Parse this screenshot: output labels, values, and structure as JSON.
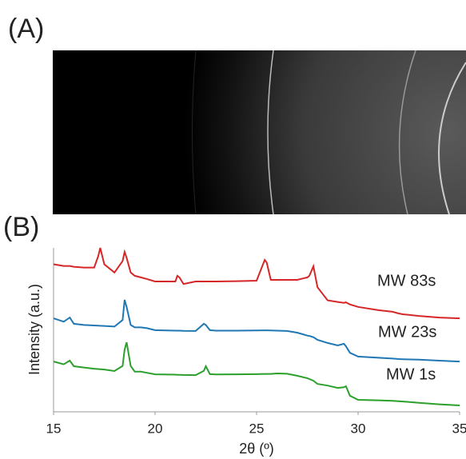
{
  "panel_a_label": "(A)",
  "chart_data": {
    "type": "line",
    "panel_label": "(B)",
    "x_label": "2θ (º)",
    "y_label": "Intensity (a.u.)",
    "x": [
      15,
      15.5,
      15.8,
      16,
      16.5,
      17,
      17.2,
      17.3,
      17.5,
      18,
      18.4,
      18.5,
      18.6,
      18.8,
      19,
      19.3,
      19.6,
      20,
      21,
      21.1,
      21.2,
      21.4,
      22,
      22.4,
      22.5,
      22.7,
      23,
      24,
      25,
      25.4,
      25.5,
      25.7,
      26,
      26.5,
      27,
      27.5,
      27.6,
      27.8,
      28,
      28.5,
      29,
      29.3,
      29.4,
      29.6,
      30,
      31,
      31.7,
      32,
      32.2,
      33,
      34,
      35
    ],
    "series": [
      {
        "name": "MW 83s",
        "color": "#d62728",
        "values": [
          90,
          89,
          89,
          88.5,
          88,
          88,
          95,
          100,
          90,
          85,
          92,
          97.5,
          94,
          85,
          83,
          82,
          81,
          79.5,
          79.5,
          83,
          82,
          78,
          79.5,
          79.5,
          79.5,
          79.5,
          79.5,
          79.7,
          80,
          92.7,
          91,
          80.5,
          80.5,
          80.5,
          80.5,
          82,
          83,
          88.8,
          76,
          68,
          67,
          66.5,
          66.8,
          65.5,
          64,
          62,
          61,
          60,
          59.5,
          58.5,
          57.5,
          57
        ]
      },
      {
        "name": "MW 23s",
        "color": "#1f77b4",
        "values": [
          57,
          55,
          57.5,
          53.7,
          53,
          52.7,
          52.6,
          52.5,
          52.4,
          52,
          56,
          68.3,
          64,
          53,
          51.5,
          51.5,
          51,
          49.8,
          49.5,
          49.5,
          49.5,
          49.4,
          49.3,
          53.7,
          53,
          49.8,
          49.5,
          49.5,
          49.6,
          49.7,
          49.7,
          49.6,
          49.5,
          49.3,
          48.3,
          46.5,
          46.3,
          45.5,
          43.9,
          42,
          40.5,
          41.5,
          40,
          36,
          33.7,
          33,
          32.5,
          32.2,
          32.1,
          31.8,
          31.2,
          30.7
        ]
      },
      {
        "name": "MW 1s",
        "color": "#2ca02c",
        "values": [
          30.7,
          29,
          31.2,
          27.8,
          27,
          26.3,
          26.1,
          26,
          25.8,
          24.9,
          28,
          38,
          42.4,
          28,
          24.5,
          24.5,
          23.8,
          22.9,
          22.7,
          22.6,
          22.6,
          22.5,
          22.4,
          25,
          27.8,
          23,
          22.8,
          22.9,
          23,
          23.1,
          23.1,
          23.1,
          23.4,
          23.2,
          22,
          20.5,
          20,
          19,
          17,
          16,
          14.6,
          15,
          15.6,
          9.8,
          7.3,
          7,
          6.7,
          6.5,
          6.3,
          5.5,
          4.6,
          3.9
        ]
      }
    ],
    "xlim": [
      15,
      35
    ],
    "xticks": [
      15,
      20,
      25,
      30,
      35
    ],
    "ylim": [
      0,
      100
    ]
  }
}
